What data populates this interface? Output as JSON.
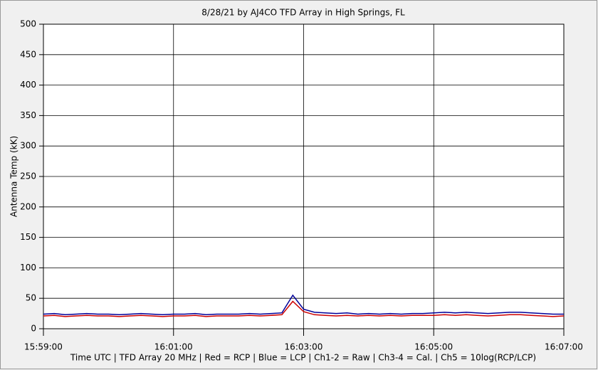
{
  "chart_data": {
    "type": "line",
    "title": "8/28/21  by  AJ4CO TFD Array  in  High Springs, FL",
    "y_label": "Antenna Temp (kK)",
    "x_label": "Time UTC | TFD Array 20 MHz | Red = RCP | Blue = LCP | Ch1-2 = Raw | Ch3-4 = Cal. | Ch5 = 10log(RCP/LCP)",
    "x": [
      "15:59:00",
      "15:59:10",
      "15:59:20",
      "15:59:30",
      "15:59:40",
      "15:59:50",
      "16:00:00",
      "16:00:10",
      "16:00:20",
      "16:00:30",
      "16:00:40",
      "16:00:50",
      "16:01:00",
      "16:01:10",
      "16:01:20",
      "16:01:30",
      "16:01:40",
      "16:01:50",
      "16:02:00",
      "16:02:10",
      "16:02:20",
      "16:02:30",
      "16:02:40",
      "16:02:50",
      "16:03:00",
      "16:03:10",
      "16:03:20",
      "16:03:30",
      "16:03:40",
      "16:03:50",
      "16:04:00",
      "16:04:10",
      "16:04:20",
      "16:04:30",
      "16:04:40",
      "16:04:50",
      "16:05:00",
      "16:05:10",
      "16:05:20",
      "16:05:30",
      "16:05:40",
      "16:05:50",
      "16:06:00",
      "16:06:10",
      "16:06:20",
      "16:06:30",
      "16:06:40",
      "16:06:50",
      "16:07:00"
    ],
    "series": [
      {
        "name": "RCP",
        "color": "#cc0000",
        "values": [
          21,
          22,
          20,
          21,
          22,
          21,
          21,
          20,
          21,
          22,
          21,
          20,
          21,
          21,
          22,
          20,
          21,
          21,
          21,
          22,
          21,
          22,
          23,
          45,
          28,
          23,
          22,
          21,
          22,
          21,
          22,
          21,
          22,
          21,
          22,
          22,
          22,
          23,
          22,
          23,
          22,
          21,
          22,
          23,
          23,
          22,
          21,
          20,
          21
        ]
      },
      {
        "name": "LCP",
        "color": "#000099",
        "values": [
          24,
          25,
          23,
          24,
          25,
          24,
          24,
          23,
          24,
          25,
          24,
          23,
          24,
          24,
          25,
          23,
          24,
          24,
          24,
          25,
          24,
          25,
          26,
          55,
          32,
          27,
          26,
          25,
          26,
          24,
          25,
          24,
          25,
          24,
          25,
          25,
          26,
          27,
          26,
          27,
          26,
          25,
          26,
          27,
          27,
          26,
          25,
          24,
          24
        ]
      }
    ],
    "xlim": [
      "15:59:00",
      "16:07:00"
    ],
    "xticks": [
      "15:59:00",
      "16:01:00",
      "16:03:00",
      "16:05:00",
      "16:07:00"
    ],
    "ylim": [
      0,
      500
    ],
    "yticks": [
      0,
      50,
      100,
      150,
      200,
      250,
      300,
      350,
      400,
      450,
      500
    ],
    "grid": true
  }
}
